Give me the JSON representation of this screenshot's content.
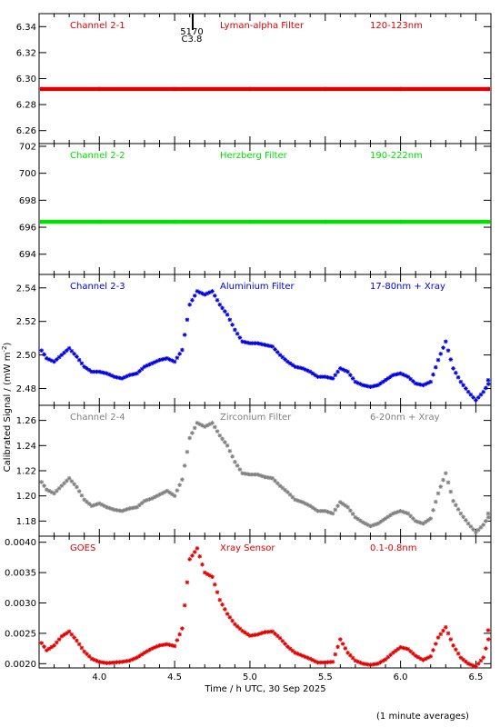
{
  "figure": {
    "xlabel": "Time / h UTC, 30 Sep 2025",
    "ylabel": "Calibrated Signal / (mW m",
    "ylabel_sup": "-2",
    "ylabel_close": ")",
    "footnote": "(1 minute averages)"
  },
  "chart_data": [
    {
      "type": "scatter",
      "name": "Channel 2-1",
      "filter": "Lyman-alpha Filter",
      "band": "120-123nm",
      "color": "#e00000",
      "xlim": [
        3.6,
        6.6
      ],
      "ylim": [
        6.25,
        6.35
      ],
      "yticks": [
        6.26,
        6.28,
        6.3,
        6.32,
        6.34
      ],
      "ytick_labels": [
        "6.26",
        "6.28",
        "6.30",
        "6.32",
        "6.34"
      ],
      "annotation": {
        "x": 4.62,
        "label1": "5170",
        "label2": "C3.8"
      },
      "x": [
        3.6,
        4.0,
        4.5,
        5.0,
        5.5,
        6.0,
        6.6
      ],
      "y": [
        6.292,
        6.292,
        6.292,
        6.292,
        6.292,
        6.292,
        6.292
      ]
    },
    {
      "type": "scatter",
      "name": "Channel 2-2",
      "filter": "Herzberg Filter",
      "band": "190-222nm",
      "color": "#00e000",
      "xlim": [
        3.6,
        6.6
      ],
      "ylim": [
        692.5,
        702.2
      ],
      "yticks": [
        694,
        696,
        698,
        700,
        702
      ],
      "ytick_labels": [
        "694",
        "696",
        "698",
        "700",
        "702"
      ],
      "x": [
        3.6,
        4.0,
        4.5,
        5.0,
        5.5,
        6.0,
        6.6
      ],
      "y": [
        696.4,
        696.4,
        696.4,
        696.4,
        696.4,
        696.4,
        696.4
      ]
    },
    {
      "type": "scatter",
      "name": "Channel 2-3",
      "filter": "Aluminium Filter",
      "band": "17-80nm + Xray",
      "color": "#0000e0",
      "xlim": [
        3.6,
        6.6
      ],
      "ylim": [
        2.47,
        2.548
      ],
      "yticks": [
        2.48,
        2.5,
        2.52,
        2.54
      ],
      "ytick_labels": [
        "2.48",
        "2.50",
        "2.52",
        "2.54"
      ],
      "x": [
        3.6,
        3.65,
        3.7,
        3.75,
        3.8,
        3.85,
        3.9,
        3.95,
        4.0,
        4.05,
        4.1,
        4.15,
        4.2,
        4.25,
        4.3,
        4.35,
        4.4,
        4.45,
        4.5,
        4.55,
        4.6,
        4.65,
        4.7,
        4.75,
        4.8,
        4.85,
        4.9,
        4.95,
        5.0,
        5.05,
        5.1,
        5.15,
        5.2,
        5.25,
        5.3,
        5.35,
        5.4,
        5.45,
        5.5,
        5.55,
        5.6,
        5.65,
        5.7,
        5.75,
        5.8,
        5.85,
        5.9,
        5.95,
        6.0,
        6.05,
        6.1,
        6.15,
        6.2,
        6.25,
        6.3,
        6.35,
        6.4,
        6.45,
        6.5,
        6.55,
        6.6
      ],
      "y": [
        2.505,
        2.498,
        2.496,
        2.5,
        2.504,
        2.499,
        2.493,
        2.49,
        2.49,
        2.489,
        2.487,
        2.486,
        2.488,
        2.489,
        2.493,
        2.495,
        2.497,
        2.498,
        2.496,
        2.503,
        2.53,
        2.538,
        2.536,
        2.538,
        2.53,
        2.524,
        2.515,
        2.508,
        2.507,
        2.507,
        2.506,
        2.505,
        2.5,
        2.496,
        2.493,
        2.492,
        2.49,
        2.487,
        2.487,
        2.486,
        2.492,
        2.49,
        2.484,
        2.482,
        2.481,
        2.482,
        2.485,
        2.488,
        2.489,
        2.487,
        2.483,
        2.482,
        2.484,
        2.497,
        2.508,
        2.492,
        2.484,
        2.478,
        2.473,
        2.478,
        2.485
      ]
    },
    {
      "type": "scatter",
      "name": "Channel 2-4",
      "filter": "Zirconium Filter",
      "band": "6-20nm + Xray",
      "color": "#808080",
      "xlim": [
        3.6,
        6.6
      ],
      "ylim": [
        1.168,
        1.272
      ],
      "yticks": [
        1.18,
        1.2,
        1.22,
        1.24,
        1.26
      ],
      "ytick_labels": [
        "1.18",
        "1.20",
        "1.22",
        "1.24",
        "1.26"
      ],
      "x": [
        3.6,
        3.65,
        3.7,
        3.75,
        3.8,
        3.85,
        3.9,
        3.95,
        4.0,
        4.05,
        4.1,
        4.15,
        4.2,
        4.25,
        4.3,
        4.35,
        4.4,
        4.45,
        4.5,
        4.55,
        4.6,
        4.65,
        4.7,
        4.75,
        4.8,
        4.85,
        4.9,
        4.95,
        5.0,
        5.05,
        5.1,
        5.15,
        5.2,
        5.25,
        5.3,
        5.35,
        5.4,
        5.45,
        5.5,
        5.55,
        5.6,
        5.65,
        5.7,
        5.75,
        5.8,
        5.85,
        5.9,
        5.95,
        6.0,
        6.05,
        6.1,
        6.15,
        6.2,
        6.25,
        6.3,
        6.35,
        6.4,
        6.45,
        6.5,
        6.55,
        6.6
      ],
      "y": [
        1.214,
        1.205,
        1.202,
        1.208,
        1.214,
        1.207,
        1.197,
        1.192,
        1.194,
        1.191,
        1.189,
        1.188,
        1.19,
        1.191,
        1.196,
        1.198,
        1.201,
        1.204,
        1.2,
        1.213,
        1.246,
        1.258,
        1.255,
        1.258,
        1.248,
        1.24,
        1.227,
        1.218,
        1.217,
        1.217,
        1.215,
        1.214,
        1.208,
        1.203,
        1.197,
        1.195,
        1.192,
        1.188,
        1.188,
        1.186,
        1.195,
        1.191,
        1.183,
        1.179,
        1.176,
        1.178,
        1.182,
        1.186,
        1.188,
        1.186,
        1.18,
        1.178,
        1.182,
        1.202,
        1.218,
        1.196,
        1.186,
        1.178,
        1.171,
        1.177,
        1.186
      ]
    },
    {
      "type": "scatter",
      "name": "GOES",
      "filter": "Xray Sensor",
      "band": "0.1-0.8nm",
      "color": "#e00000",
      "xlim": [
        3.6,
        6.6
      ],
      "ylim": [
        0.00193,
        0.0041
      ],
      "yticks": [
        0.002,
        0.0025,
        0.003,
        0.0035,
        0.004
      ],
      "ytick_labels": [
        "0.0020",
        "0.0025",
        "0.0030",
        "0.0035",
        "0.0040"
      ],
      "xticks": [
        4.0,
        4.5,
        5.0,
        5.5,
        6.0,
        6.5
      ],
      "xtick_labels": [
        "4.0",
        "4.5",
        "5.0",
        "5.5",
        "6.0",
        "6.5"
      ],
      "x": [
        3.6,
        3.65,
        3.7,
        3.75,
        3.8,
        3.85,
        3.9,
        3.95,
        4.0,
        4.05,
        4.1,
        4.15,
        4.2,
        4.25,
        4.3,
        4.35,
        4.4,
        4.45,
        4.5,
        4.55,
        4.6,
        4.65,
        4.7,
        4.75,
        4.8,
        4.85,
        4.9,
        4.95,
        5.0,
        5.05,
        5.1,
        5.15,
        5.2,
        5.25,
        5.3,
        5.35,
        5.4,
        5.45,
        5.5,
        5.55,
        5.6,
        5.65,
        5.7,
        5.75,
        5.8,
        5.85,
        5.9,
        5.95,
        6.0,
        6.05,
        6.1,
        6.15,
        6.2,
        6.25,
        6.3,
        6.35,
        6.4,
        6.45,
        6.5,
        6.55,
        6.6
      ],
      "y": [
        0.0024,
        0.00222,
        0.0023,
        0.00245,
        0.00253,
        0.00238,
        0.0022,
        0.00208,
        0.00203,
        0.00201,
        0.00202,
        0.00203,
        0.00205,
        0.0021,
        0.00218,
        0.00225,
        0.0023,
        0.00232,
        0.00229,
        0.00258,
        0.00372,
        0.0039,
        0.0035,
        0.00343,
        0.00305,
        0.00282,
        0.00265,
        0.00254,
        0.00246,
        0.00248,
        0.00252,
        0.00253,
        0.00242,
        0.00228,
        0.00218,
        0.00213,
        0.00208,
        0.00202,
        0.00202,
        0.00203,
        0.0024,
        0.00218,
        0.00205,
        0.002,
        0.00198,
        0.002,
        0.00207,
        0.00218,
        0.00227,
        0.00224,
        0.00213,
        0.00206,
        0.00212,
        0.00243,
        0.0026,
        0.0023,
        0.0021,
        0.002,
        0.00195,
        0.0021,
        0.00255
      ]
    }
  ]
}
